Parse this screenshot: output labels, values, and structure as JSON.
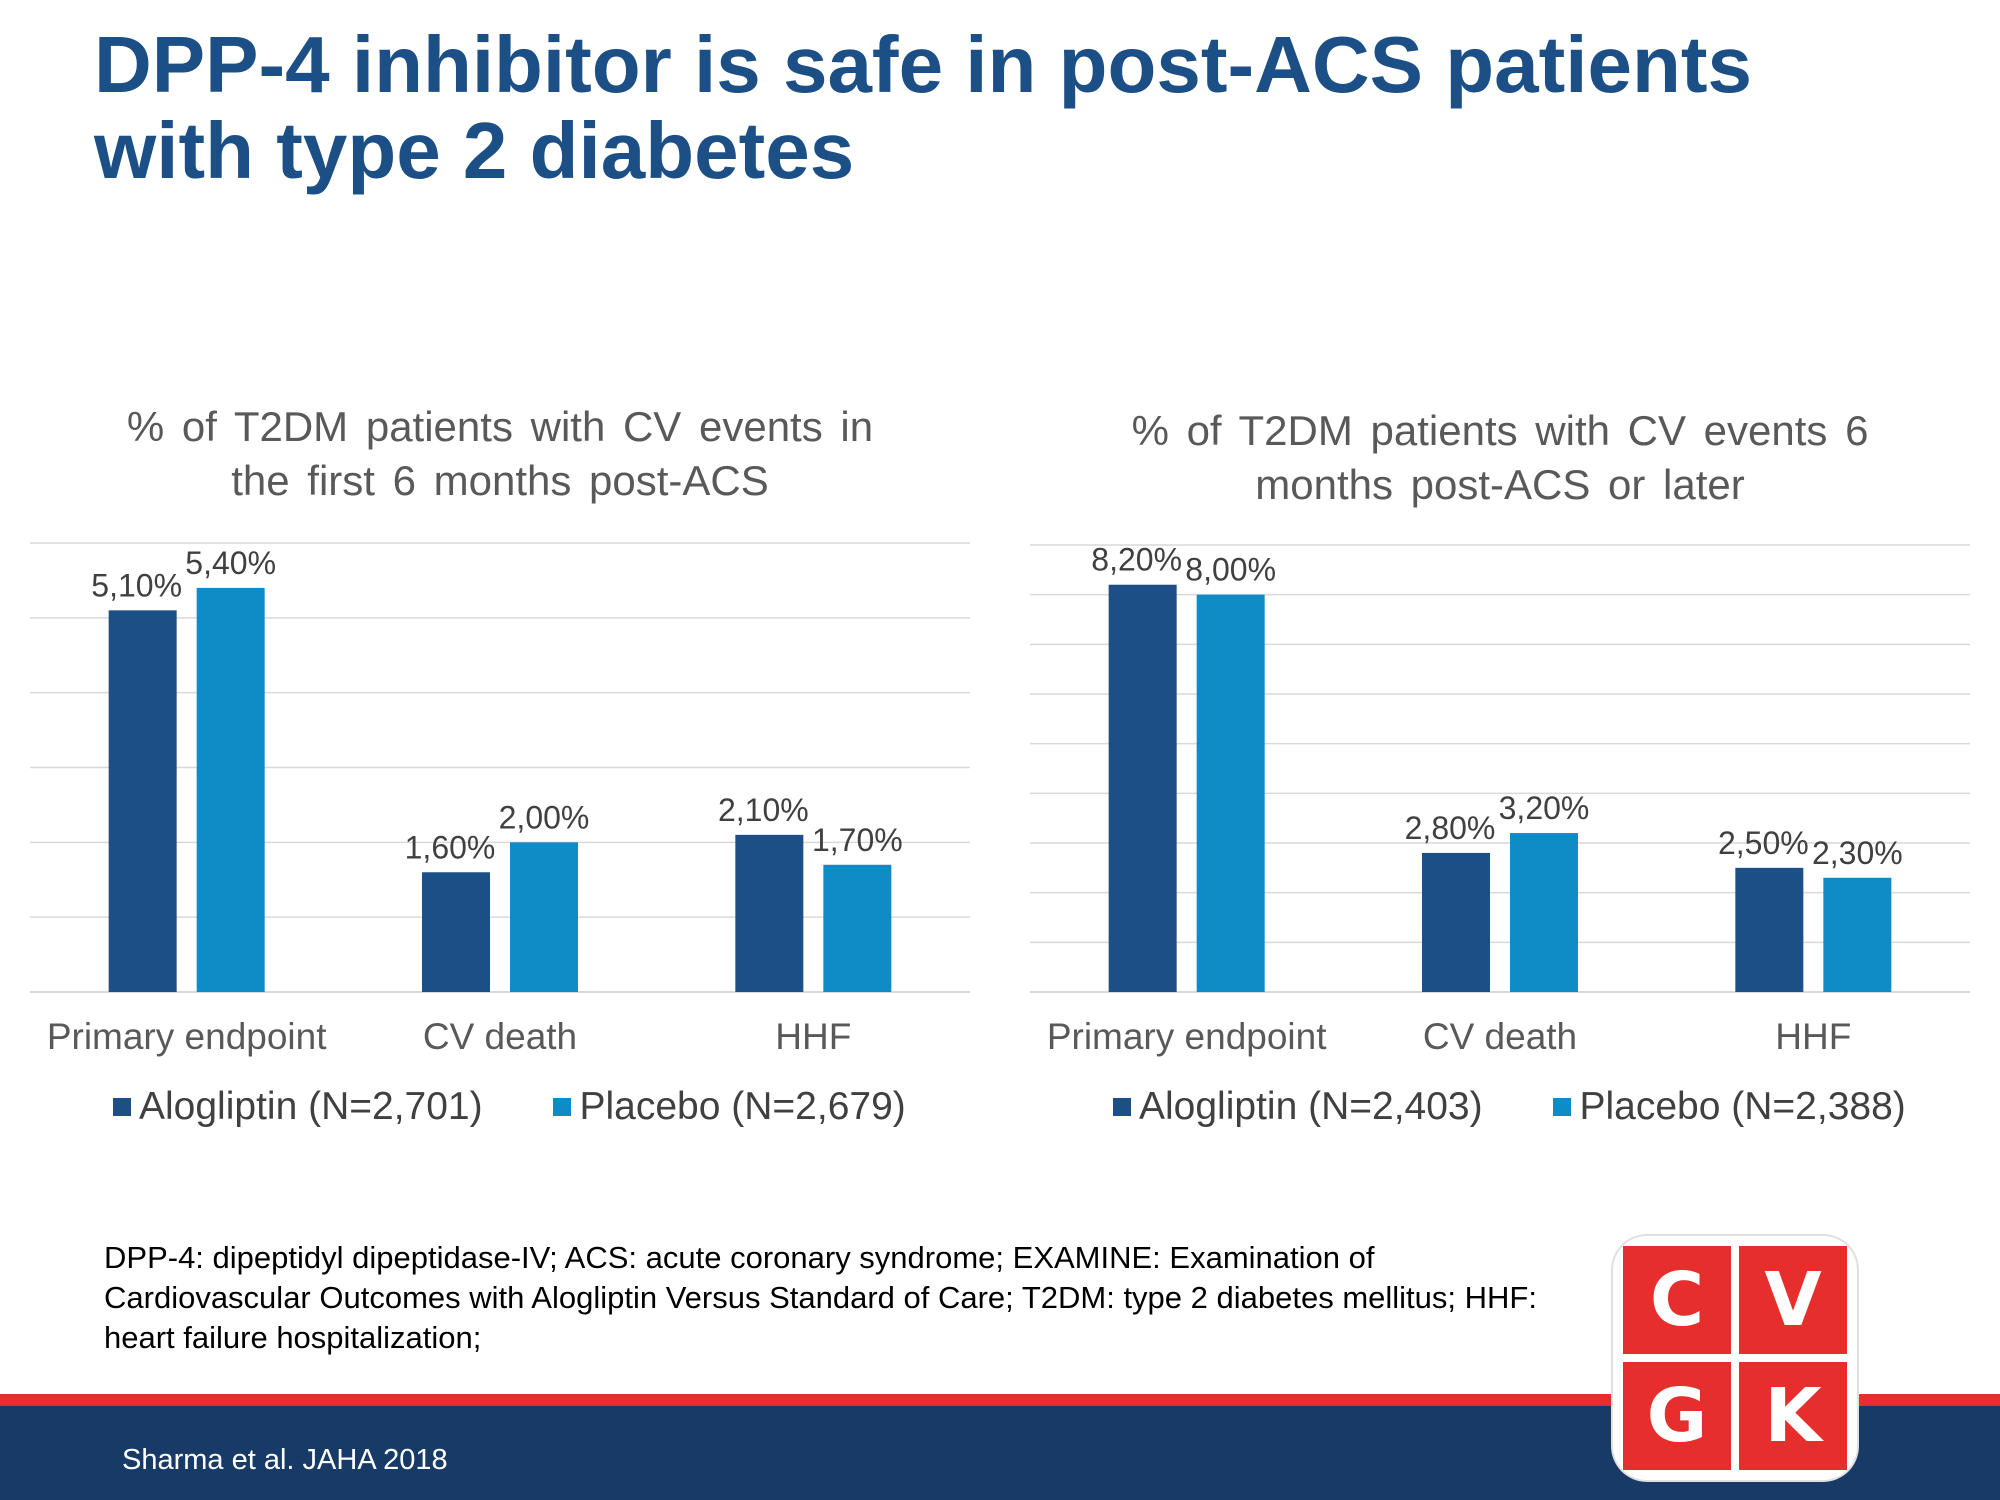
{
  "title": "DPP-4 inhibitor is safe in post-ACS patients with type 2 diabetes",
  "colors": {
    "title": "#1c4f86",
    "alogliptin": "#1c4f86",
    "placebo": "#0f8bc6",
    "accent_red": "#e62e2d",
    "navy_bar": "#183a67"
  },
  "chart_data": [
    {
      "type": "bar",
      "title": "% of T2DM patients with CV events in the first 6 months post-ACS",
      "categories": [
        "Primary endpoint",
        "CV death",
        "HHF"
      ],
      "series": [
        {
          "name": "Alogliptin (N=2,701)",
          "values": [
            5.1,
            1.6,
            2.1
          ],
          "labels": [
            "5,10%",
            "1,60%",
            "2,10%"
          ]
        },
        {
          "name": "Placebo (N=2,679)",
          "values": [
            5.4,
            2.0,
            1.7
          ],
          "labels": [
            "5,40%",
            "2,00%",
            "1,70%"
          ]
        }
      ],
      "ylim": [
        0,
        6
      ],
      "grid": true,
      "legend_position": "bottom"
    },
    {
      "type": "bar",
      "title": "% of T2DM patients with CV events 6 months post-ACS or later",
      "categories": [
        "Primary endpoint",
        "CV death",
        "HHF"
      ],
      "series": [
        {
          "name": "Alogliptin (N=2,403)",
          "values": [
            8.2,
            2.8,
            2.5
          ],
          "labels": [
            "8,20%",
            "2,80%",
            "2,50%"
          ]
        },
        {
          "name": "Placebo (N=2,388)",
          "values": [
            8.0,
            3.2,
            2.3
          ],
          "labels": [
            "8,00%",
            "3,20%",
            "2,30%"
          ]
        }
      ],
      "ylim": [
        0,
        9
      ],
      "grid": true,
      "legend_position": "bottom"
    }
  ],
  "footnote": "DPP-4: dipeptidyl dipeptidase-IV; ACS: acute coronary syndrome; EXAMINE: Examination of Cardiovascular Outcomes with Alogliptin Versus Standard of Care; T2DM: type 2 diabetes mellitus; HHF: heart failure hospitalization;",
  "citation": "Sharma et al. JAHA 2018",
  "logo": {
    "letters": [
      "C",
      "V",
      "G",
      "K"
    ]
  }
}
